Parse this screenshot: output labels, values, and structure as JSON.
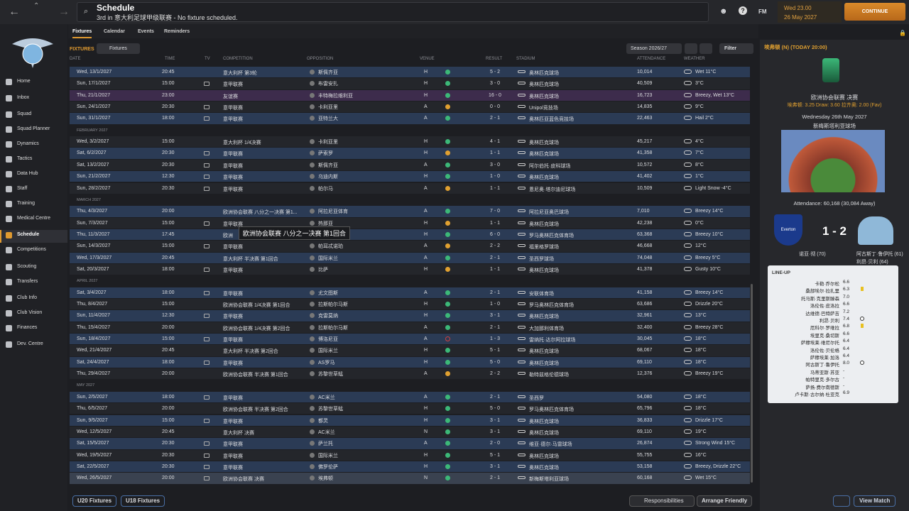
{
  "header": {
    "title": "Schedule",
    "subtitle": "3rd in 意大利足球甲级联赛 - No fixture scheduled.",
    "fm": "FM",
    "time": "Wed 23.00",
    "date": "26 May 2027",
    "continue": "CONTINUE"
  },
  "sidebar": [
    "Home",
    "Inbox",
    "Squad",
    "Squad Planner",
    "Dynamics",
    "Tactics",
    "Data Hub",
    "Staff",
    "Training",
    "Medical Centre",
    "Schedule",
    "Competitions",
    "Scouting",
    "Transfers",
    "Club Info",
    "Club Vision",
    "Finances",
    "Dev. Centre"
  ],
  "tabs": [
    "Fixtures",
    "Calendar",
    "Events",
    "Reminders"
  ],
  "toolbar": {
    "label": "FIXTURES",
    "view": "Fixtures",
    "season": "Season 2026/27",
    "filter": "Filter"
  },
  "table": {
    "columns": [
      "DATE",
      "TIME",
      "TV",
      "COMPETITION",
      "OPPOSITION",
      "VENUE",
      "RESULT",
      "STADIUM",
      "ATTENDANCE",
      "WEATHER"
    ],
    "sections": [
      {
        "rows": [
          {
            "date": "Wed, 13/1/2027",
            "time": "20:45",
            "tv": false,
            "competition": "意大利杯 第3轮",
            "opposition": "斯佩齐亚",
            "venue": "H",
            "outcome": "W",
            "result": "5 - 2",
            "stadium": "奥林匹克球场",
            "attendance": "10,014",
            "weather": "Wet 11°C"
          },
          {
            "date": "Sun, 17/1/2027",
            "time": "15:00",
            "tv": true,
            "competition": "意甲联赛",
            "opposition": "布雷安扎",
            "venue": "H",
            "outcome": "W",
            "result": "3 - 0",
            "stadium": "奥林匹克球场",
            "attendance": "40,509",
            "weather": "3°C"
          },
          {
            "date": "Thu, 21/1/2027",
            "time": "23:00",
            "tv": false,
            "competition": "友谊赛",
            "opposition": "丰特梅拉维利亚",
            "venue": "H",
            "outcome": "W",
            "result": "16 - 0",
            "stadium": "奥林匹克球场",
            "attendance": "16,723",
            "weather": "Breezy, Wet 13°C"
          },
          {
            "date": "Sun, 24/1/2027",
            "time": "20:30",
            "tv": true,
            "competition": "意甲联赛",
            "opposition": "卡利亚里",
            "venue": "A",
            "outcome": "D",
            "result": "0 - 0",
            "stadium": "Unipol竞技场",
            "attendance": "14,835",
            "weather": "9°C"
          },
          {
            "date": "Sun, 31/1/2027",
            "time": "18:00",
            "tv": true,
            "competition": "意甲联赛",
            "opposition": "亚特兰大",
            "venue": "A",
            "outcome": "W",
            "result": "2 - 1",
            "stadium": "奥林匹亚蓝色竞技场",
            "attendance": "22,463",
            "weather": "Hail 2°C"
          }
        ]
      },
      {
        "label": "FEBRUARY 2027",
        "rows": [
          {
            "date": "Wed, 3/2/2027",
            "time": "15:00",
            "tv": false,
            "competition": "意大利杯 1/4决赛",
            "opposition": "卡利亚里",
            "venue": "H",
            "outcome": "W",
            "result": "4 - 1",
            "stadium": "奥林匹克球场",
            "attendance": "45,217",
            "weather": "4°C"
          },
          {
            "date": "Sat, 6/2/2027",
            "time": "20:30",
            "tv": true,
            "competition": "意甲联赛",
            "opposition": "萨索罗",
            "venue": "H",
            "outcome": "D",
            "result": "1 - 1",
            "stadium": "奥林匹克球场",
            "attendance": "41,358",
            "weather": "7°C"
          },
          {
            "date": "Sat, 13/2/2027",
            "time": "20:30",
            "tv": true,
            "competition": "意甲联赛",
            "opposition": "斯佩齐亚",
            "venue": "A",
            "outcome": "W",
            "result": "3 - 0",
            "stadium": "阿尔伯托·皮科球场",
            "attendance": "10,572",
            "weather": "8°C"
          },
          {
            "date": "Sun, 21/2/2027",
            "time": "12:30",
            "tv": true,
            "competition": "意甲联赛",
            "opposition": "乌迪内斯",
            "venue": "H",
            "outcome": "W",
            "result": "1 - 0",
            "stadium": "奥林匹克球场",
            "attendance": "41,402",
            "weather": "1°C"
          },
          {
            "date": "Sun, 28/2/2027",
            "time": "20:30",
            "tv": true,
            "competition": "意甲联赛",
            "opposition": "帕尔马",
            "venue": "A",
            "outcome": "D",
            "result": "1 - 1",
            "stadium": "恩尼奥·塔尔迪尼球场",
            "attendance": "10,509",
            "weather": "Light Snow -4°C"
          }
        ]
      },
      {
        "label": "MARCH 2027",
        "rows": [
          {
            "date": "Thu, 4/3/2027",
            "time": "20:00",
            "tv": false,
            "competition": "欧洲协会联赛 八分之一决赛 第1...",
            "opposition": "阿拉尼亚体育",
            "venue": "A",
            "outcome": "W",
            "result": "7 - 0",
            "stadium": "阿拉尼亚奥巴球场",
            "attendance": "7,010",
            "weather": "Breezy 14°C"
          },
          {
            "date": "Sun, 7/3/2027",
            "time": "15:00",
            "tv": true,
            "competition": "意甲联赛",
            "opposition": "热那亚",
            "venue": "H",
            "outcome": "D",
            "result": "1 - 1",
            "stadium": "奥林匹克球场",
            "attendance": "42,238",
            "weather": "0°C"
          },
          {
            "date": "Thu, 11/3/2027",
            "time": "17:45",
            "tv": false,
            "competition": "欧洲",
            "opposition": "阿拉尼亚体育",
            "venue": "H",
            "outcome": "W",
            "result": "6 - 0",
            "stadium": "罗马奥林匹克体育场",
            "attendance": "63,368",
            "weather": "Breezy 10°C"
          },
          {
            "date": "Sun, 14/3/2027",
            "time": "15:00",
            "tv": true,
            "competition": "意甲联赛",
            "opposition": "帕耳忒诺珀",
            "venue": "A",
            "outcome": "D",
            "result": "2 - 2",
            "stadium": "福里格罗球场",
            "attendance": "46,668",
            "weather": "12°C"
          },
          {
            "date": "Wed, 17/3/2027",
            "time": "20:45",
            "tv": false,
            "competition": "意大利杯 半决赛 第1回合",
            "opposition": "国际米兰",
            "venue": "A",
            "outcome": "W",
            "result": "2 - 1",
            "stadium": "圣西罗球场",
            "attendance": "74,048",
            "weather": "Breezy 5°C"
          },
          {
            "date": "Sat, 20/3/2027",
            "time": "18:00",
            "tv": true,
            "competition": "意甲联赛",
            "opposition": "比萨",
            "venue": "H",
            "outcome": "D",
            "result": "1 - 1",
            "stadium": "奥林匹克球场",
            "attendance": "41,378",
            "weather": "Gusty 10°C"
          }
        ]
      },
      {
        "label": "APRIL 2027",
        "rows": [
          {
            "date": "Sat, 3/4/2027",
            "time": "18:00",
            "tv": true,
            "competition": "意甲联赛",
            "opposition": "尤文图斯",
            "venue": "A",
            "outcome": "W",
            "result": "2 - 1",
            "stadium": "安联体育场",
            "attendance": "41,158",
            "weather": "Breezy 14°C"
          },
          {
            "date": "Thu, 8/4/2027",
            "time": "15:00",
            "tv": false,
            "competition": "欧洲协会联赛 1/4决赛 第1回合",
            "opposition": "拉斯帕尔马斯",
            "venue": "H",
            "outcome": "W",
            "result": "1 - 0",
            "stadium": "罗马奥林匹克体育场",
            "attendance": "63,686",
            "weather": "Drizzle 20°C"
          },
          {
            "date": "Sun, 11/4/2027",
            "time": "12:30",
            "tv": true,
            "competition": "意甲联赛",
            "opposition": "克雷莫纳",
            "venue": "H",
            "outcome": "W",
            "result": "3 - 1",
            "stadium": "奥林匹克球场",
            "attendance": "32,961",
            "weather": "13°C"
          },
          {
            "date": "Thu, 15/4/2027",
            "time": "20:00",
            "tv": false,
            "competition": "欧洲协会联赛 1/4决赛 第2回合",
            "opposition": "拉斯帕尔马斯",
            "venue": "A",
            "outcome": "W",
            "result": "2 - 1",
            "stadium": "大加那利体育场",
            "attendance": "32,400",
            "weather": "Breezy 28°C"
          },
          {
            "date": "Sun, 18/4/2027",
            "time": "15:00",
            "tv": true,
            "competition": "意甲联赛",
            "opposition": "博洛尼亚",
            "venue": "A",
            "outcome": "L",
            "result": "1 - 3",
            "stadium": "雷纳托·达尔阿拉球场",
            "attendance": "30,045",
            "weather": "18°C"
          },
          {
            "date": "Wed, 21/4/2027",
            "time": "20:45",
            "tv": false,
            "competition": "意大利杯 半决赛 第2回合",
            "opposition": "国际米兰",
            "venue": "H",
            "outcome": "W",
            "result": "5 - 1",
            "stadium": "奥林匹克球场",
            "attendance": "68,067",
            "weather": "18°C"
          },
          {
            "date": "Sat, 24/4/2027",
            "time": "18:00",
            "tv": true,
            "competition": "意甲联赛",
            "opposition": "AS罗马",
            "venue": "H",
            "outcome": "W",
            "result": "5 - 0",
            "stadium": "奥林匹克球场",
            "attendance": "69,110",
            "weather": "18°C"
          },
          {
            "date": "Thu, 29/4/2027",
            "time": "20:00",
            "tv": false,
            "competition": "欧洲协会联赛 半决赛 第1回合",
            "opposition": "苏黎世草蜢",
            "venue": "A",
            "outcome": "D",
            "result": "2 - 2",
            "stadium": "勒特兹格伦德球场",
            "attendance": "12,376",
            "weather": "Breezy 19°C"
          }
        ]
      },
      {
        "label": "MAY 2027",
        "rows": [
          {
            "date": "Sun, 2/5/2027",
            "time": "18:00",
            "tv": true,
            "competition": "意甲联赛",
            "opposition": "AC米兰",
            "venue": "A",
            "outcome": "W",
            "result": "2 - 1",
            "stadium": "圣西罗",
            "attendance": "54,080",
            "weather": "18°C"
          },
          {
            "date": "Thu, 6/5/2027",
            "time": "20:00",
            "tv": false,
            "competition": "欧洲协会联赛 半决赛 第2回合",
            "opposition": "苏黎世草蜢",
            "venue": "H",
            "outcome": "W",
            "result": "5 - 0",
            "stadium": "罗马奥林匹克体育场",
            "attendance": "65,796",
            "weather": "18°C"
          },
          {
            "date": "Sun, 9/5/2027",
            "time": "15:00",
            "tv": true,
            "competition": "意甲联赛",
            "opposition": "都灵",
            "venue": "H",
            "outcome": "W",
            "result": "3 - 1",
            "stadium": "奥林匹克球场",
            "attendance": "36,833",
            "weather": "Drizzle 17°C"
          },
          {
            "date": "Wed, 12/5/2027",
            "time": "20:45",
            "tv": false,
            "competition": "意大利杯 决赛",
            "opposition": "AC米兰",
            "venue": "N",
            "outcome": "W",
            "result": "3 - 1",
            "stadium": "奥林匹克球场",
            "attendance": "69,110",
            "weather": "19°C"
          },
          {
            "date": "Sat, 15/5/2027",
            "time": "20:30",
            "tv": true,
            "competition": "意甲联赛",
            "opposition": "萨兰托",
            "venue": "A",
            "outcome": "W",
            "result": "2 - 0",
            "stadium": "维亚·德尔·马雷球场",
            "attendance": "26,874",
            "weather": "Strong Wind 15°C"
          },
          {
            "date": "Wed, 19/5/2027",
            "time": "20:30",
            "tv": true,
            "competition": "意甲联赛",
            "opposition": "国际米兰",
            "venue": "H",
            "outcome": "W",
            "result": "5 - 1",
            "stadium": "奥林匹克球场",
            "attendance": "55,755",
            "weather": "16°C"
          },
          {
            "date": "Sat, 22/5/2027",
            "time": "20:30",
            "tv": true,
            "competition": "意甲联赛",
            "opposition": "佛罗伦萨",
            "venue": "H",
            "outcome": "W",
            "result": "3 - 1",
            "stadium": "奥林匹克球场",
            "attendance": "53,158",
            "weather": "Breezy, Drizzle 22°C"
          },
          {
            "date": "Wed, 26/5/2027",
            "time": "20:00",
            "tv": true,
            "competition": "欧洲协会联赛 决赛",
            "opposition": "埃弗顿",
            "venue": "N",
            "outcome": "W",
            "result": "2 - 1",
            "stadium": "新梅斯塔利亚球场",
            "attendance": "60,168",
            "weather": "Wet 15°C"
          }
        ]
      }
    ]
  },
  "tooltip": "欧洲协会联赛 八分之一决赛 第1回合",
  "footer": {
    "u20": "U20 Fixtures",
    "u18": "U18 Fixtures",
    "responsibilities": "Responsibilities",
    "arrange": "Arrange Friendly",
    "view": "View Match"
  },
  "match": {
    "heading": "埃弗顿 (N) (TODAY 20:00)",
    "competition": "欧洲协会联赛 决赛",
    "odds": "埃弗顿: 3.25 Draw: 3.60 拉齐奥: 2.00 (Fav)",
    "date": "Wednesday 26th May 2027",
    "stadium": "新梅斯塔利亚球场",
    "attendance": "Attendance: 60,168 (30,084 Away)",
    "home_badge": "Everton",
    "score": "1 - 2",
    "home_scorers": [
      "诺亚·彻 (70)"
    ],
    "away_scorers": [
      "阿古斯丁·鲁伊托 (61)",
      "利昂·贝利 (64)"
    ],
    "lineup_title": "LINE-UP",
    "lineup": [
      {
        "name": "卡勒·乔尔松",
        "rating": "6.6"
      },
      {
        "name": "桑部埃尔·拉扎里",
        "rating": "6.3",
        "card": true
      },
      {
        "name": "托马斯·克里斯滕森",
        "rating": "7.0"
      },
      {
        "name": "洛伦佐·皮洛拉",
        "rating": "6.6"
      },
      {
        "name": "达维德·巴特萨吉",
        "rating": "7.2"
      },
      {
        "name": "利昂·贝利",
        "rating": "7.4",
        "goal": true
      },
      {
        "name": "厄科尔·罗维拉",
        "rating": "6.8",
        "card": true
      },
      {
        "name": "埃里克·桑切斯",
        "rating": "6.6"
      },
      {
        "name": "萨穆埃莱·维尼尔托",
        "rating": "6.4"
      },
      {
        "name": "洛伦佐·贝伦格",
        "rating": "6.4"
      },
      {
        "name": "萨穆埃莱·加洛",
        "rating": "6.4"
      },
      {
        "name": "阿古斯丁·鲁伊托",
        "rating": "8.0",
        "goal": true
      },
      {
        "name": "马蒂亚斯·苏亚",
        "rating": "-"
      },
      {
        "name": "帕特里克·多尔古",
        "rating": "-"
      },
      {
        "name": "萨扬·费尔南德斯",
        "rating": "-"
      },
      {
        "name": "卢卡斯·古尔纳·杜亚克",
        "rating": "6.9"
      }
    ]
  }
}
